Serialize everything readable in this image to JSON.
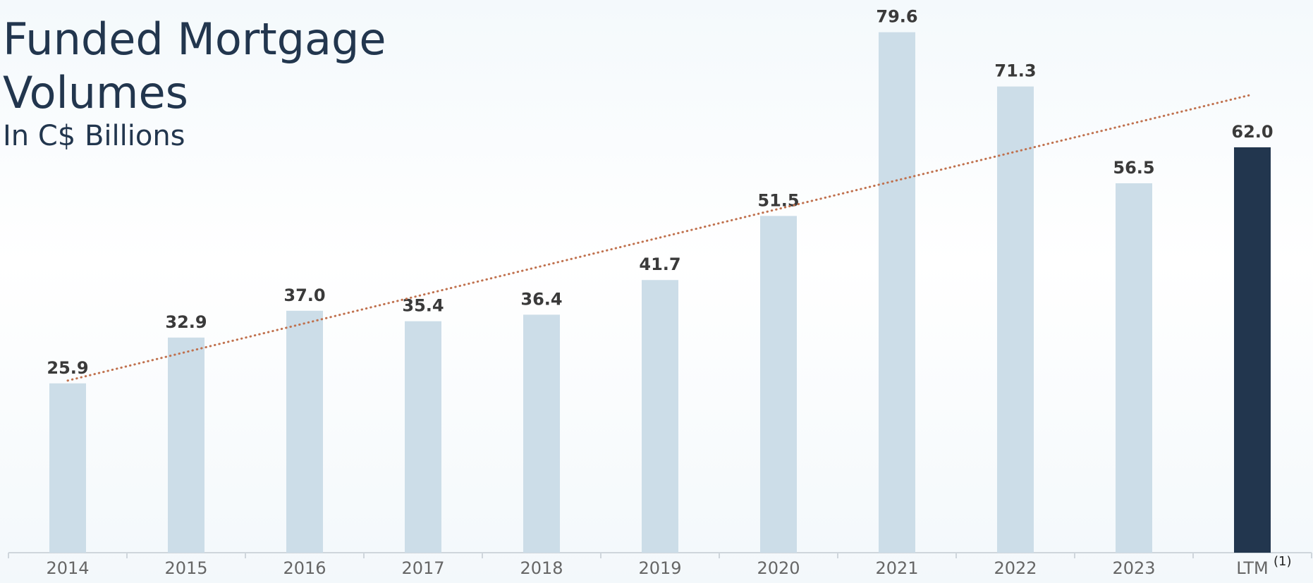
{
  "chart_data": {
    "type": "bar",
    "title": "Funded Mortgage Volumes",
    "subtitle": "In C$ Billions",
    "categories": [
      "2014",
      "2015",
      "2016",
      "2017",
      "2018",
      "2019",
      "2020",
      "2021",
      "2022",
      "2023",
      "LTM"
    ],
    "category_superscripts": [
      null,
      null,
      null,
      null,
      null,
      null,
      null,
      null,
      null,
      null,
      "(1)"
    ],
    "values": [
      25.9,
      32.9,
      37.0,
      35.4,
      36.4,
      41.7,
      51.5,
      79.6,
      71.3,
      56.5,
      62.0
    ],
    "value_labels": [
      "25.9",
      "32.9",
      "37.0",
      "35.4",
      "36.4",
      "41.7",
      "51.5",
      "79.6",
      "71.3",
      "56.5",
      "62.0"
    ],
    "colors": [
      "#ccdde8",
      "#ccdde8",
      "#ccdde8",
      "#ccdde8",
      "#ccdde8",
      "#ccdde8",
      "#ccdde8",
      "#ccdde8",
      "#ccdde8",
      "#ccdde8",
      "#22364e"
    ],
    "ylim": [
      0,
      80
    ],
    "trendline": "linear",
    "trendline_color": "#c0714e",
    "grid": false
  }
}
